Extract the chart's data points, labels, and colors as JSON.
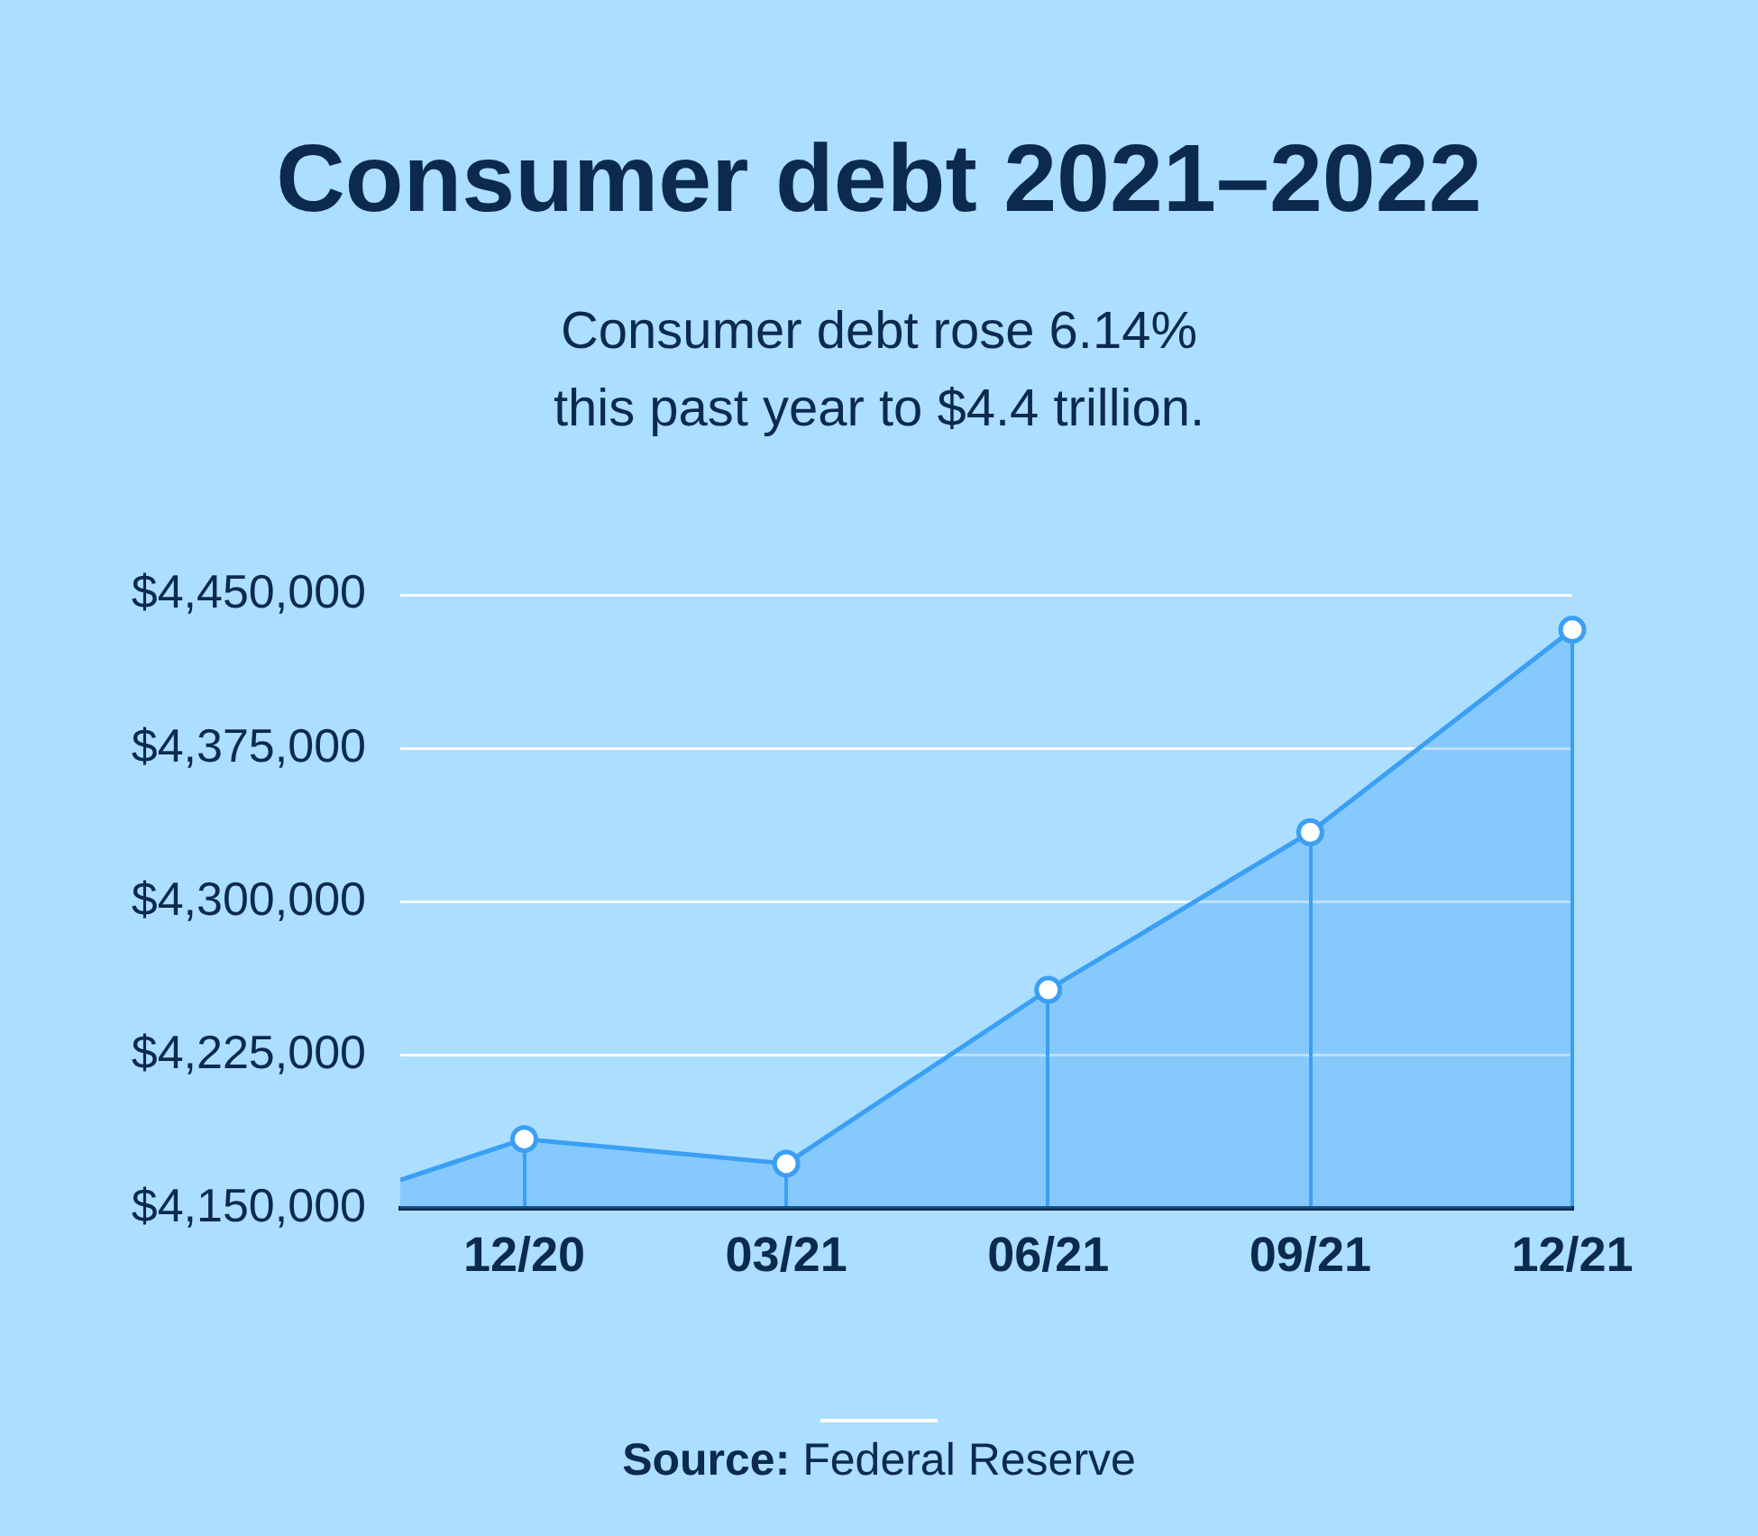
{
  "chart_data": {
    "type": "area",
    "title": "Consumer debt 2021–2022",
    "subtitle": "Consumer debt rose 6.14%\nthis past year to $4.4 trillion.",
    "x": [
      "2020-10-19",
      "2020-12",
      "2021-03",
      "2021-06",
      "2021-09",
      "2021-12"
    ],
    "values": [
      4164000,
      4184000,
      4172000,
      4257000,
      4334000,
      4433000
    ],
    "color": "#3a9ff5",
    "xlim": [
      "2020-10-19",
      "2021-12"
    ],
    "xticks": [
      {
        "value": "2020-12",
        "label": "12/20"
      },
      {
        "value": "2021-03",
        "label": "03/21"
      },
      {
        "value": "2021-06",
        "label": "06/21"
      },
      {
        "value": "2021-09",
        "label": "09/21"
      },
      {
        "value": "2021-12",
        "label": "12/21"
      }
    ],
    "ylim": [
      4150000,
      4450000
    ],
    "yticks": [
      {
        "value": 4150000,
        "label": "$4,150,000"
      },
      {
        "value": 4225000,
        "label": "$4,225,000"
      },
      {
        "value": 4300000,
        "label": "$4,300,000"
      },
      {
        "value": 4375000,
        "label": "$4,375,000"
      },
      {
        "value": 4450000,
        "label": "$4,450,000"
      }
    ],
    "grid": "y",
    "marker": "circle",
    "line_style": "solid",
    "annotations": [
      "Source: Federal Reserve"
    ]
  }
}
